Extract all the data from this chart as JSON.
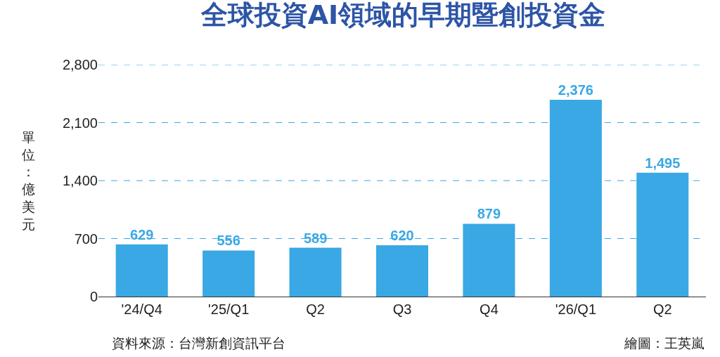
{
  "chart_data": {
    "type": "bar",
    "title": "全球投資AI領域的早期暨創投資金",
    "ylabel": "單位：億美元",
    "categories": [
      "'24/Q4",
      "'25/Q1",
      "Q2",
      "Q3",
      "Q4",
      "'26/Q1",
      "Q2"
    ],
    "values": [
      629,
      556,
      589,
      620,
      879,
      2376,
      1495
    ],
    "color": "#3aa8e4",
    "value_labels": [
      "629",
      "556",
      "589",
      "620",
      "879",
      "2,376",
      "1,495"
    ],
    "ylim": [
      0,
      2800
    ],
    "yticks": [
      0,
      {
        "value": 700,
        "label": "700"
      },
      {
        "value": 1400,
        "label": "1,400"
      },
      {
        "value": 2100,
        "label": "2,100"
      },
      {
        "value": 2800,
        "label": "2,800"
      }
    ],
    "grid": "y",
    "annotations": [
      "資料來源：台灣新創資訊平台",
      "繪圖：王英嵐"
    ]
  }
}
